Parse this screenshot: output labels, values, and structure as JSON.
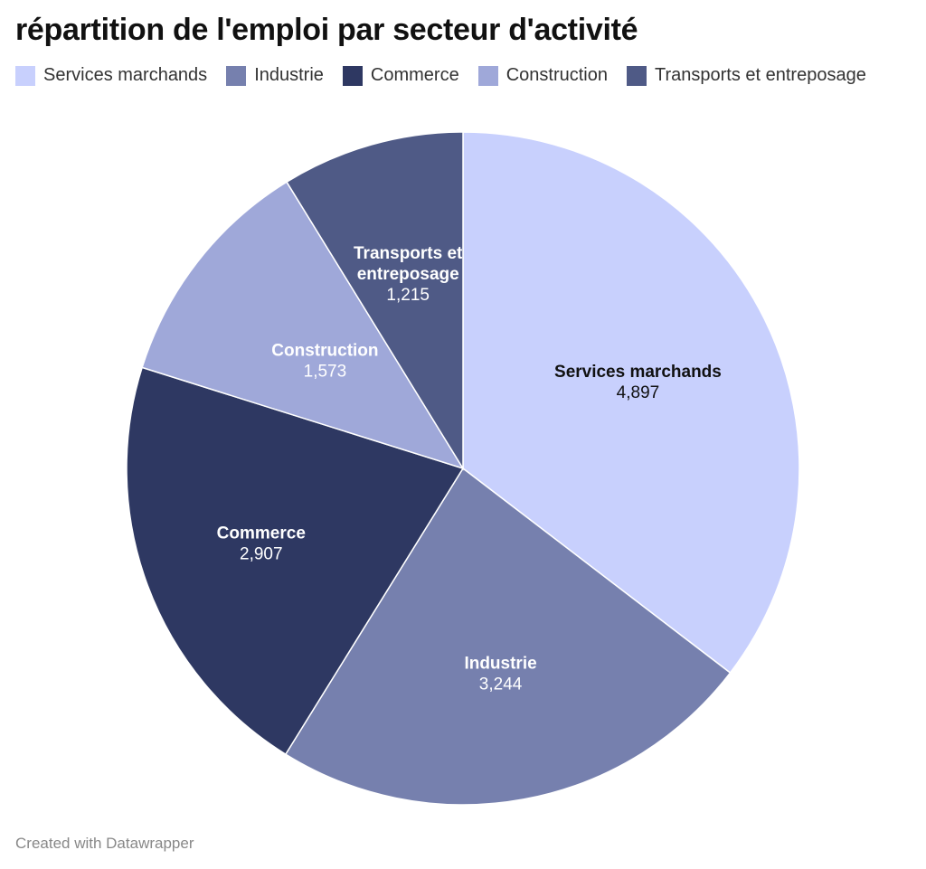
{
  "chart_data": {
    "type": "pie",
    "title": "répartition de l'emploi par secteur d'activité",
    "categories": [
      "Services marchands",
      "Industrie",
      "Commerce",
      "Construction",
      "Transports et entreposage"
    ],
    "values": [
      4897,
      3244,
      2907,
      1573,
      1215
    ],
    "value_labels": [
      "4,897",
      "3,244",
      "2,907",
      "1,573",
      "1,215"
    ],
    "colors": [
      "#c8d0fd",
      "#7680ae",
      "#2e3862",
      "#9fa8d9",
      "#4f5a86"
    ],
    "label_colors": [
      "#111111",
      "#ffffff",
      "#ffffff",
      "#ffffff",
      "#ffffff"
    ],
    "start_angle_deg": 0,
    "direction": "clockwise",
    "legend_position": "top"
  },
  "legend": {
    "items": [
      {
        "label": "Services marchands",
        "color": "#c8d0fd"
      },
      {
        "label": "Industrie",
        "color": "#7680ae"
      },
      {
        "label": "Commerce",
        "color": "#2e3862"
      },
      {
        "label": "Construction",
        "color": "#9fa8d9"
      },
      {
        "label": "Transports et entreposage",
        "color": "#4f5a86"
      }
    ]
  },
  "footer": {
    "credit": "Created with Datawrapper"
  }
}
